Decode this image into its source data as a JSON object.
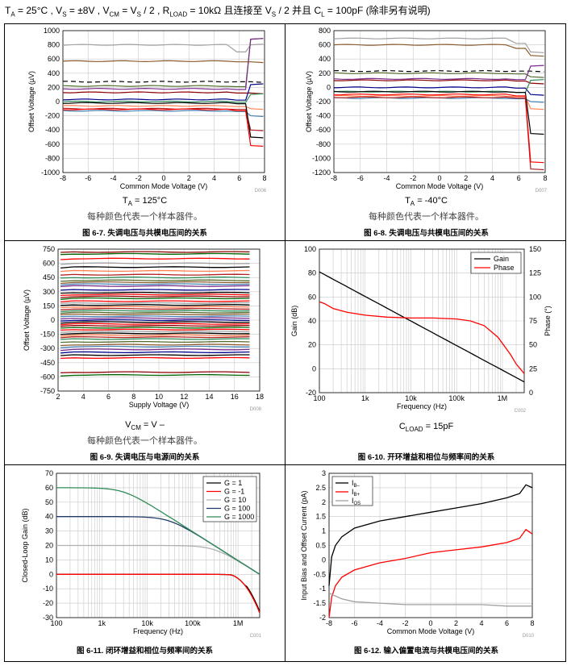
{
  "header": {
    "text_main": "T",
    "sub_a": "A",
    "eq1": " = 25°C , V",
    "sub_s": "S",
    "eq2": " = ±8V , V",
    "sub_cm": "CM",
    "eq3": " = V",
    "sub_s2": "S",
    "eq4": " / 2 , R",
    "sub_load": "LOAD",
    "eq5": " = 10kΩ  且连接至 V",
    "sub_s3": "S",
    "eq6": " / 2 并且 C",
    "sub_l": "L",
    "eq7": " = 100pF (除非另有说明)"
  },
  "chart_data": [
    {
      "id": "fig6_7",
      "type": "line",
      "xlabel": "Common Mode Voltage (V)",
      "ylabel": "Offset Voltage (µV)",
      "xlim": [
        -8,
        8
      ],
      "ylim": [
        -1000,
        1000
      ],
      "xticks": [
        "-8",
        "-6",
        "-4",
        "-2",
        "0",
        "2",
        "4",
        "6",
        "8"
      ],
      "yticks": [
        "-1000",
        "-800",
        "-600",
        "-400",
        "-200",
        "0",
        "200",
        "400",
        "600",
        "800",
        "1000"
      ],
      "code": "D006",
      "condition_pre": "T",
      "condition_sub": "A",
      "condition_post": " = 125°C",
      "note": "每种颜色代表一个样本器件。",
      "caption": "图 6-7. 失调电压与共模电压间的关系",
      "series": [
        {
          "color": "#a0a0a0",
          "level": 800,
          "tail": 700,
          "spike": 800,
          "dash": false
        },
        {
          "color": "#8b5a2b",
          "level": 570,
          "tail": 560,
          "spike": 560,
          "dash": false
        },
        {
          "color": "#000000",
          "level": 280,
          "tail": 280,
          "spike": 280,
          "dash": true
        },
        {
          "color": "#556b2f",
          "level": 220,
          "tail": 210,
          "spike": 880,
          "dash": false
        },
        {
          "color": "#7b2d8e",
          "level": 180,
          "tail": 170,
          "spike": 880,
          "dash": false
        },
        {
          "color": "#8b0000",
          "level": 130,
          "tail": 120,
          "spike": 120,
          "dash": false
        },
        {
          "color": "#00008b",
          "level": 30,
          "tail": 20,
          "spike": 240,
          "dash": false
        },
        {
          "color": "#2e8b57",
          "level": 0,
          "tail": -10,
          "spike": 100,
          "dash": false
        },
        {
          "color": "#ff7f50",
          "level": -60,
          "tail": -70,
          "spike": -100,
          "dash": false
        },
        {
          "color": "#b22222",
          "level": -100,
          "tail": -110,
          "spike": -400,
          "dash": false
        },
        {
          "color": "#4682b4",
          "level": -130,
          "tail": -140,
          "spike": -200,
          "dash": false
        },
        {
          "color": "#ff0000",
          "level": -110,
          "tail": -130,
          "spike": -620,
          "dash": false
        },
        {
          "color": "#000000",
          "level": -20,
          "tail": -30,
          "spike": -500,
          "dash": false
        }
      ]
    },
    {
      "id": "fig6_8",
      "type": "line",
      "xlabel": "Common Mode Voltage (V)",
      "ylabel": "Offset Voltage (µV)",
      "xlim": [
        -8,
        8
      ],
      "ylim": [
        -1200,
        800
      ],
      "xticks": [
        "-8",
        "-6",
        "-4",
        "-2",
        "0",
        "2",
        "4",
        "6",
        "8"
      ],
      "yticks": [
        "-1200",
        "-1000",
        "-800",
        "-600",
        "-400",
        "-200",
        "0",
        "200",
        "400",
        "600",
        "800"
      ],
      "code": "D007",
      "condition_pre": "T",
      "condition_sub": "A",
      "condition_post": " = -40°C",
      "note": "每种颜色代表一个样本器件。",
      "caption": "图 6-8. 失调电压与共模电压间的关系",
      "series": [
        {
          "color": "#a0a0a0",
          "level": 690,
          "tail": 620,
          "spike": 500,
          "dash": false
        },
        {
          "color": "#8b5a2b",
          "level": 600,
          "tail": 550,
          "spike": 450,
          "dash": false
        },
        {
          "color": "#000000",
          "level": 230,
          "tail": 230,
          "spike": 230,
          "dash": true
        },
        {
          "color": "#556b2f",
          "level": 200,
          "tail": 190,
          "spike": 150,
          "dash": false
        },
        {
          "color": "#7b2d8e",
          "level": 120,
          "tail": 110,
          "spike": 300,
          "dash": false
        },
        {
          "color": "#8b0000",
          "level": 100,
          "tail": 90,
          "spike": 60,
          "dash": false
        },
        {
          "color": "#00008b",
          "level": 0,
          "tail": -10,
          "spike": -100,
          "dash": false
        },
        {
          "color": "#2e8b57",
          "level": -60,
          "tail": -70,
          "spike": 100,
          "dash": false
        },
        {
          "color": "#ff7f50",
          "level": -120,
          "tail": -130,
          "spike": -300,
          "dash": false
        },
        {
          "color": "#4682b4",
          "level": -150,
          "tail": -160,
          "spike": -200,
          "dash": false
        },
        {
          "color": "#000000",
          "level": -60,
          "tail": -70,
          "spike": -650,
          "dash": false
        },
        {
          "color": "#b22222",
          "level": -140,
          "tail": -150,
          "spike": -1150,
          "dash": false
        },
        {
          "color": "#ff0000",
          "level": -100,
          "tail": -120,
          "spike": -1050,
          "dash": false
        }
      ]
    },
    {
      "id": "fig6_9",
      "type": "line",
      "xlabel": "Supply Voltage (V)",
      "ylabel": "Offset Voltage (µV)",
      "xlim": [
        2,
        18
      ],
      "ylim": [
        -750,
        750
      ],
      "xticks": [
        "2",
        "4",
        "6",
        "8",
        "10",
        "12",
        "14",
        "16",
        "18"
      ],
      "yticks": [
        "-750",
        "-600",
        "-450",
        "-300",
        "-150",
        "0",
        "150",
        "300",
        "450",
        "600",
        "750"
      ],
      "code": "D008",
      "condition_pre": "V",
      "condition_sub": "CM",
      "condition_post": " = V –",
      "note": "每种颜色代表一个样本器件。",
      "caption": "图 6-9. 失调电压与电源间的关系",
      "levels": [
        720,
        700,
        650,
        600,
        560,
        520,
        480,
        450,
        420,
        400,
        380,
        360,
        320,
        290,
        270,
        250,
        230,
        200,
        180,
        160,
        140,
        120,
        100,
        80,
        60,
        40,
        20,
        0,
        -20,
        -40,
        -60,
        -80,
        -100,
        -120,
        -140,
        -160,
        -180,
        -200,
        -230,
        -260,
        -280,
        -310,
        -340,
        -370,
        -400,
        -550,
        -580
      ],
      "colors": [
        "#8b0000",
        "#006400",
        "#ff0000",
        "#a0a0a0",
        "#000000",
        "#ff7f50",
        "#b22222",
        "#2e8b57",
        "#556b2f",
        "#8b5a2b",
        "#4682b4",
        "#7b2d8e",
        "#00008b",
        "#000000",
        "#ff0000"
      ]
    },
    {
      "id": "fig6_10",
      "type": "line",
      "xlabel": "Frequency (Hz)",
      "ylabel": "Gain (dB)",
      "y2label": "Phase (°)",
      "xscale": "log",
      "xlim": [
        100,
        3000000
      ],
      "ylim": [
        -20,
        100
      ],
      "y2lim": [
        0,
        150
      ],
      "xticks": [
        "100",
        "1k",
        "10k",
        "100k",
        "1M"
      ],
      "yticks": [
        "-20",
        "0",
        "20",
        "40",
        "60",
        "80",
        "100"
      ],
      "y2ticks": [
        "0",
        "25",
        "50",
        "75",
        "100",
        "125",
        "150"
      ],
      "legend": [
        "Gain",
        "Phase"
      ],
      "code": "C002",
      "condition_pre": "C",
      "condition_sub": "LOAD",
      "condition_post": " = 15pF",
      "caption": "图 6-10. 开环增益和相位与频率间的关系",
      "gain": {
        "x": [
          100,
          3000000
        ],
        "y": [
          81,
          -11
        ]
      },
      "phase": {
        "x": [
          100,
          130,
          200,
          400,
          1000,
          3000,
          10000,
          30000,
          100000,
          200000,
          400000,
          800000,
          1500000,
          2000000,
          3000000
        ],
        "y": [
          95,
          93,
          88,
          84,
          81,
          79,
          78,
          78,
          77,
          75,
          70,
          58,
          40,
          30,
          20
        ]
      }
    },
    {
      "id": "fig6_11",
      "type": "line",
      "xlabel": "Frequency (Hz)",
      "ylabel": "Closed-Loop Gain (dB)",
      "xscale": "log",
      "xlim": [
        100,
        3000000
      ],
      "ylim": [
        -30,
        70
      ],
      "xticks": [
        "100",
        "1k",
        "10k",
        "100k",
        "1M"
      ],
      "yticks": [
        "-30",
        "-20",
        "-10",
        "0",
        "10",
        "20",
        "30",
        "40",
        "50",
        "60",
        "70"
      ],
      "code": "C001",
      "caption": "图 6-11. 闭环增益和相位与频率间的关系",
      "series": [
        {
          "name": "G = 1",
          "color": "#000000",
          "dc": 0
        },
        {
          "name": "G = -1",
          "color": "#ff0000",
          "dc": 0
        },
        {
          "name": "G = 10",
          "color": "#b0b0b0",
          "dc": 20
        },
        {
          "name": "G = 100",
          "color": "#1f3a66",
          "dc": 40
        },
        {
          "name": "G = 1000",
          "color": "#2e8b57",
          "dc": 60
        }
      ]
    },
    {
      "id": "fig6_12",
      "type": "line",
      "xlabel": "Common Mode Voltage (V)",
      "ylabel": "Input Bias and Offset Current (pA)",
      "xlim": [
        -8,
        8
      ],
      "ylim": [
        -2,
        3
      ],
      "xticks": [
        "-8",
        "-6",
        "-4",
        "-2",
        "0",
        "2",
        "4",
        "6",
        "8"
      ],
      "yticks": [
        "-2",
        "-1.5",
        "-1",
        "-0.5",
        "0",
        "0.5",
        "1",
        "1.5",
        "2",
        "2.5",
        "3"
      ],
      "code": "D010",
      "caption": "图 6-12. 输入偏置电流与共模电压间的关系",
      "series": [
        {
          "name_pre": "I",
          "name_sub": "B–",
          "color": "#000000",
          "x": [
            -8,
            -7.8,
            -7.5,
            -7,
            -6,
            -4,
            -2,
            0,
            2,
            4,
            6,
            7,
            7.5,
            8
          ],
          "y": [
            -0.9,
            0.1,
            0.5,
            0.8,
            1.1,
            1.35,
            1.5,
            1.65,
            1.8,
            1.95,
            2.15,
            2.3,
            2.6,
            2.5
          ]
        },
        {
          "name_pre": "I",
          "name_sub": "B+",
          "color": "#ff0000",
          "x": [
            -8,
            -7.8,
            -7.5,
            -7,
            -6,
            -4,
            -2,
            0,
            2,
            4,
            6,
            7,
            7.5,
            8
          ],
          "y": [
            -2.0,
            -1.3,
            -0.9,
            -0.6,
            -0.35,
            -0.1,
            0.05,
            0.25,
            0.35,
            0.45,
            0.6,
            0.75,
            1.05,
            0.9
          ]
        },
        {
          "name_pre": "I",
          "name_sub": "OS",
          "color": "#a0a0a0",
          "x": [
            -8,
            -7.5,
            -7,
            -6,
            -4,
            -2,
            0,
            2,
            4,
            6,
            8
          ],
          "y": [
            -1.15,
            -1.25,
            -1.35,
            -1.45,
            -1.5,
            -1.55,
            -1.55,
            -1.55,
            -1.55,
            -1.6,
            -1.6
          ]
        }
      ]
    }
  ]
}
